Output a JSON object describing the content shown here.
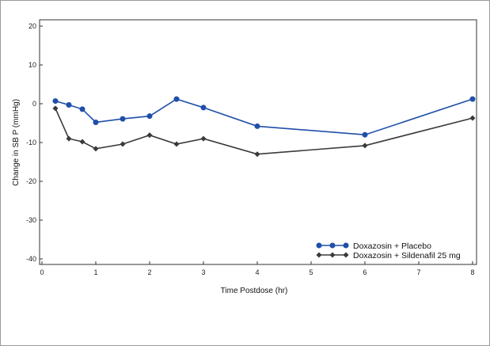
{
  "chart_data": {
    "type": "line",
    "xlabel": "Time Postdose (hr)",
    "ylabel": "Change in SB P (mmHg)",
    "xlim": [
      0,
      8
    ],
    "ylim": [
      -40,
      20
    ],
    "xticks": [
      0,
      1,
      2,
      3,
      4,
      5,
      6,
      7,
      8
    ],
    "yticks": [
      20,
      10,
      0,
      -10,
      -20,
      -30,
      -40
    ],
    "grid": false,
    "legend_position": "bottom-right",
    "series": [
      {
        "name": "Doxazosin + Placebo",
        "color": "#1f4fa8",
        "marker": "circle",
        "x": [
          0.25,
          0.5,
          0.75,
          1,
          1.5,
          2,
          2.5,
          3,
          4,
          6,
          8
        ],
        "y": [
          0.7,
          -0.3,
          -1.4,
          -4.8,
          -3.9,
          -3.2,
          1.2,
          -1.0,
          -5.8,
          -8.0,
          1.2
        ]
      },
      {
        "name": "Doxazosin + Sildenafil 25 mg",
        "color": "#3a3a3a",
        "marker": "diamond",
        "x": [
          0.25,
          0.5,
          0.75,
          1,
          1.5,
          2,
          2.5,
          3,
          4,
          6,
          8
        ],
        "y": [
          -1.2,
          -9.0,
          -9.8,
          -11.6,
          -10.4,
          -8.1,
          -10.4,
          -9.0,
          -13.0,
          -10.8,
          -3.7
        ]
      }
    ]
  }
}
